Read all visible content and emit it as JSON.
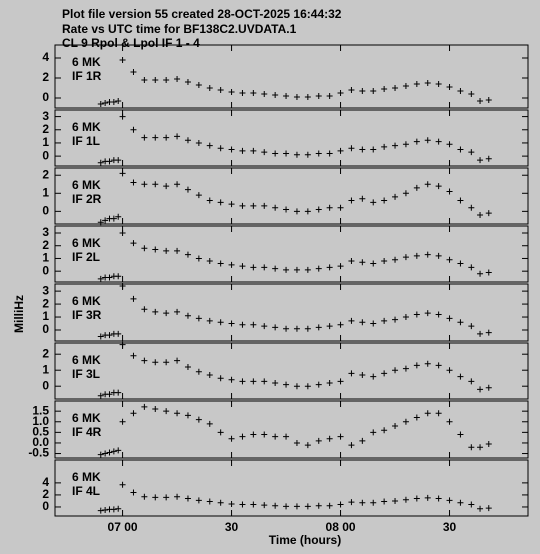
{
  "header": {
    "lines": [
      "Plot file version 55  created 28-OCT-2025 16:44:32",
      "Rate vs UTC time for BF138C2.UVDATA.1",
      "CL 9  Rpol & Lpol  IF 1 - 4"
    ]
  },
  "ylabel": "MilliHz",
  "xlabel": "Time (hours)",
  "chart_data": [
    {
      "type": "scatter",
      "annotations": [
        "6 MK",
        "IF 1R"
      ],
      "xlim": [
        6.69,
        8.86
      ],
      "ylim": [
        -1,
        5.3
      ],
      "yticks": [
        0,
        2,
        4
      ],
      "xticks": [
        {
          "value": 7,
          "label": "07 00"
        },
        {
          "value": 7.5,
          "label": "30"
        },
        {
          "value": 8,
          "label": "08 00"
        },
        {
          "value": 8.5,
          "label": "30"
        }
      ],
      "x": [
        6.9,
        6.92,
        6.94,
        6.96,
        6.98,
        7,
        7.05,
        7.1,
        7.15,
        7.2,
        7.25,
        7.3,
        7.35,
        7.4,
        7.45,
        7.5,
        7.55,
        7.6,
        7.65,
        7.7,
        7.75,
        7.8,
        7.85,
        7.9,
        7.95,
        8,
        8.05,
        8.1,
        8.15,
        8.2,
        8.25,
        8.3,
        8.35,
        8.4,
        8.45,
        8.5,
        8.55,
        8.6,
        8.64,
        8.68
      ],
      "values": [
        -0.6,
        -0.5,
        -0.4,
        -0.4,
        -0.3,
        3.8,
        2.6,
        1.8,
        1.8,
        1.8,
        1.9,
        1.6,
        1.3,
        1.0,
        0.8,
        0.6,
        0.5,
        0.5,
        0.4,
        0.3,
        0.2,
        0.1,
        0.1,
        0.2,
        0.2,
        0.5,
        0.8,
        0.7,
        0.7,
        0.9,
        1.0,
        1.2,
        1.4,
        1.5,
        1.4,
        1.1,
        0.7,
        0.4,
        -0.3,
        -0.2
      ]
    },
    {
      "type": "scatter",
      "annotations": [
        "6 MK",
        "IF 1L"
      ],
      "xlim": [
        6.69,
        8.86
      ],
      "ylim": [
        -0.75,
        3.5
      ],
      "yticks": [
        0,
        1,
        2,
        3
      ],
      "xticks": [
        {
          "value": 7,
          "label": "07 00"
        },
        {
          "value": 7.5,
          "label": "30"
        },
        {
          "value": 8,
          "label": "08 00"
        },
        {
          "value": 8.5,
          "label": "30"
        }
      ],
      "x": [
        6.9,
        6.92,
        6.94,
        6.96,
        6.98,
        7,
        7.05,
        7.1,
        7.15,
        7.2,
        7.25,
        7.3,
        7.35,
        7.4,
        7.45,
        7.5,
        7.55,
        7.6,
        7.65,
        7.7,
        7.75,
        7.8,
        7.85,
        7.9,
        7.95,
        8,
        8.05,
        8.1,
        8.15,
        8.2,
        8.25,
        8.3,
        8.35,
        8.4,
        8.45,
        8.5,
        8.55,
        8.6,
        8.64,
        8.68
      ],
      "values": [
        -0.5,
        -0.4,
        -0.4,
        -0.3,
        -0.3,
        3.0,
        2.0,
        1.4,
        1.4,
        1.4,
        1.5,
        1.2,
        1.0,
        0.8,
        0.6,
        0.5,
        0.4,
        0.4,
        0.3,
        0.2,
        0.2,
        0.1,
        0.1,
        0.2,
        0.2,
        0.4,
        0.6,
        0.5,
        0.5,
        0.7,
        0.8,
        0.9,
        1.1,
        1.2,
        1.1,
        0.9,
        0.5,
        0.3,
        -0.3,
        -0.2
      ]
    },
    {
      "type": "scatter",
      "annotations": [
        "6 MK",
        "IF 2R"
      ],
      "xlim": [
        6.69,
        8.86
      ],
      "ylim": [
        -0.7,
        2.4
      ],
      "yticks": [
        0,
        1,
        2
      ],
      "xticks": [
        {
          "value": 7,
          "label": "07 00"
        },
        {
          "value": 7.5,
          "label": "30"
        },
        {
          "value": 8,
          "label": "08 00"
        },
        {
          "value": 8.5,
          "label": "30"
        }
      ],
      "x": [
        6.9,
        6.92,
        6.94,
        6.96,
        6.98,
        7,
        7.05,
        7.1,
        7.15,
        7.2,
        7.25,
        7.3,
        7.35,
        7.4,
        7.45,
        7.5,
        7.55,
        7.6,
        7.65,
        7.7,
        7.75,
        7.8,
        7.85,
        7.9,
        7.95,
        8,
        8.05,
        8.1,
        8.15,
        8.2,
        8.25,
        8.3,
        8.35,
        8.4,
        8.45,
        8.5,
        8.55,
        8.6,
        8.64,
        8.68
      ],
      "values": [
        -0.6,
        -0.5,
        -0.4,
        -0.4,
        -0.3,
        2.1,
        1.6,
        1.5,
        1.5,
        1.4,
        1.5,
        1.2,
        0.9,
        0.6,
        0.5,
        0.4,
        0.3,
        0.3,
        0.3,
        0.2,
        0.1,
        0.0,
        0.0,
        0.1,
        0.2,
        0.2,
        0.6,
        0.7,
        0.5,
        0.6,
        0.8,
        1.0,
        1.3,
        1.5,
        1.4,
        1.1,
        0.6,
        0.2,
        -0.2,
        -0.1
      ]
    },
    {
      "type": "scatter",
      "annotations": [
        "6 MK",
        "IF 2L"
      ],
      "xlim": [
        6.69,
        8.86
      ],
      "ylim": [
        -0.85,
        3.55
      ],
      "yticks": [
        0,
        1,
        2,
        3
      ],
      "xticks": [
        {
          "value": 7,
          "label": "07 00"
        },
        {
          "value": 7.5,
          "label": "30"
        },
        {
          "value": 8,
          "label": "08 00"
        },
        {
          "value": 8.5,
          "label": "30"
        }
      ],
      "x": [
        6.9,
        6.92,
        6.94,
        6.96,
        6.98,
        7,
        7.05,
        7.1,
        7.15,
        7.2,
        7.25,
        7.3,
        7.35,
        7.4,
        7.45,
        7.5,
        7.55,
        7.6,
        7.65,
        7.7,
        7.75,
        7.8,
        7.85,
        7.9,
        7.95,
        8,
        8.05,
        8.1,
        8.15,
        8.2,
        8.25,
        8.3,
        8.35,
        8.4,
        8.45,
        8.5,
        8.55,
        8.6,
        8.64,
        8.68
      ],
      "values": [
        -0.6,
        -0.5,
        -0.5,
        -0.4,
        -0.4,
        3.0,
        2.2,
        1.8,
        1.7,
        1.6,
        1.6,
        1.3,
        1.0,
        0.8,
        0.6,
        0.5,
        0.4,
        0.3,
        0.3,
        0.2,
        0.1,
        0.1,
        0.1,
        0.2,
        0.3,
        0.4,
        0.8,
        0.7,
        0.6,
        0.8,
        0.9,
        1.1,
        1.2,
        1.3,
        1.2,
        0.9,
        0.6,
        0.3,
        -0.2,
        -0.1
      ]
    },
    {
      "type": "scatter",
      "annotations": [
        "6 MK",
        "IF 3R"
      ],
      "xlim": [
        6.69,
        8.86
      ],
      "ylim": [
        -0.85,
        3.55
      ],
      "yticks": [
        0,
        1,
        2,
        3
      ],
      "xticks": [
        {
          "value": 7,
          "label": "07 00"
        },
        {
          "value": 7.5,
          "label": "30"
        },
        {
          "value": 8,
          "label": "08 00"
        },
        {
          "value": 8.5,
          "label": "30"
        }
      ],
      "x": [
        6.9,
        6.92,
        6.94,
        6.96,
        6.98,
        7,
        7.05,
        7.1,
        7.15,
        7.2,
        7.25,
        7.3,
        7.35,
        7.4,
        7.45,
        7.5,
        7.55,
        7.6,
        7.65,
        7.7,
        7.75,
        7.8,
        7.85,
        7.9,
        7.95,
        8,
        8.05,
        8.1,
        8.15,
        8.2,
        8.25,
        8.3,
        8.35,
        8.4,
        8.45,
        8.5,
        8.55,
        8.6,
        8.64,
        8.68
      ],
      "values": [
        -0.5,
        -0.4,
        -0.4,
        -0.3,
        -0.3,
        3.4,
        2.4,
        1.6,
        1.4,
        1.3,
        1.4,
        1.1,
        0.9,
        0.7,
        0.6,
        0.5,
        0.4,
        0.4,
        0.3,
        0.2,
        0.1,
        0.1,
        0.1,
        0.2,
        0.3,
        0.4,
        0.7,
        0.6,
        0.5,
        0.7,
        0.8,
        1.0,
        1.2,
        1.3,
        1.2,
        0.9,
        0.6,
        0.3,
        -0.3,
        -0.2
      ]
    },
    {
      "type": "scatter",
      "annotations": [
        "6 MK",
        "IF 3L"
      ],
      "xlim": [
        6.69,
        8.86
      ],
      "ylim": [
        -0.8,
        2.7
      ],
      "yticks": [
        0,
        1,
        2
      ],
      "xticks": [
        {
          "value": 7,
          "label": "07 00"
        },
        {
          "value": 7.5,
          "label": "30"
        },
        {
          "value": 8,
          "label": "08 00"
        },
        {
          "value": 8.5,
          "label": "30"
        }
      ],
      "x": [
        6.9,
        6.92,
        6.94,
        6.96,
        6.98,
        7,
        7.05,
        7.1,
        7.15,
        7.2,
        7.25,
        7.3,
        7.35,
        7.4,
        7.45,
        7.5,
        7.55,
        7.6,
        7.65,
        7.7,
        7.75,
        7.8,
        7.85,
        7.9,
        7.95,
        8,
        8.05,
        8.1,
        8.15,
        8.2,
        8.25,
        8.3,
        8.35,
        8.4,
        8.45,
        8.5,
        8.55,
        8.6,
        8.64,
        8.68
      ],
      "values": [
        -0.6,
        -0.5,
        -0.5,
        -0.4,
        -0.4,
        2.6,
        1.9,
        1.6,
        1.5,
        1.5,
        1.6,
        1.2,
        0.9,
        0.7,
        0.5,
        0.4,
        0.3,
        0.3,
        0.3,
        0.2,
        0.1,
        0.0,
        0.0,
        0.1,
        0.2,
        0.3,
        0.8,
        0.7,
        0.6,
        0.8,
        1.0,
        1.1,
        1.3,
        1.4,
        1.3,
        1.0,
        0.6,
        0.3,
        -0.2,
        -0.1
      ]
    },
    {
      "type": "scatter",
      "annotations": [
        "6 MK",
        "IF 4R"
      ],
      "xlim": [
        6.69,
        8.86
      ],
      "ylim": [
        -0.71,
        1.98
      ],
      "yticks": [
        -0.5,
        {
          "value": 0,
          "label": "0.0"
        },
        0.5,
        {
          "value": 1,
          "label": "1.0"
        },
        1.5
      ],
      "xticks": [
        {
          "value": 7,
          "label": "07 00"
        },
        {
          "value": 7.5,
          "label": "30"
        },
        {
          "value": 8,
          "label": "08 00"
        },
        {
          "value": 8.5,
          "label": "30"
        }
      ],
      "x": [
        6.9,
        6.92,
        6.94,
        6.96,
        6.98,
        7,
        7.05,
        7.1,
        7.15,
        7.2,
        7.25,
        7.3,
        7.35,
        7.4,
        7.45,
        7.5,
        7.55,
        7.6,
        7.65,
        7.7,
        7.75,
        7.8,
        7.85,
        7.9,
        7.95,
        8,
        8.05,
        8.1,
        8.15,
        8.2,
        8.25,
        8.3,
        8.35,
        8.4,
        8.45,
        8.5,
        8.55,
        8.6,
        8.64,
        8.68
      ],
      "values": [
        -0.55,
        -0.5,
        -0.45,
        -0.4,
        -0.35,
        1.0,
        1.4,
        1.7,
        1.6,
        1.5,
        1.4,
        1.3,
        1.1,
        0.9,
        0.5,
        0.2,
        0.3,
        0.4,
        0.4,
        0.3,
        0.3,
        0.0,
        -0.1,
        0.1,
        0.2,
        0.3,
        -0.1,
        0.1,
        0.5,
        0.6,
        0.8,
        1.0,
        1.2,
        1.4,
        1.4,
        1.0,
        0.4,
        -0.2,
        -0.2,
        -0.05
      ]
    },
    {
      "type": "scatter",
      "annotations": [
        "6 MK",
        "IF 4L"
      ],
      "xlim": [
        6.69,
        8.86
      ],
      "ylim": [
        -1.5,
        7.8
      ],
      "yticks": [
        0,
        2,
        4
      ],
      "xticks": [
        {
          "value": 7,
          "label": "07 00"
        },
        {
          "value": 7.5,
          "label": "30"
        },
        {
          "value": 8,
          "label": "08 00"
        },
        {
          "value": 8.5,
          "label": "30"
        }
      ],
      "x": [
        6.9,
        6.92,
        6.94,
        6.96,
        6.98,
        7,
        7.05,
        7.1,
        7.15,
        7.2,
        7.25,
        7.3,
        7.35,
        7.4,
        7.45,
        7.5,
        7.55,
        7.6,
        7.65,
        7.7,
        7.75,
        7.8,
        7.85,
        7.9,
        7.95,
        8,
        8.05,
        8.1,
        8.15,
        8.2,
        8.25,
        8.3,
        8.35,
        8.4,
        8.45,
        8.5,
        8.55,
        8.6,
        8.64,
        8.68
      ],
      "values": [
        -0.6,
        -0.5,
        -0.4,
        -0.4,
        -0.3,
        3.7,
        2.4,
        1.7,
        1.6,
        1.6,
        1.7,
        1.4,
        1.1,
        0.9,
        0.7,
        0.5,
        0.4,
        0.4,
        0.3,
        0.2,
        0.1,
        0.1,
        0.1,
        0.2,
        0.2,
        0.4,
        0.8,
        0.7,
        0.7,
        0.9,
        1.0,
        1.2,
        1.4,
        1.5,
        1.4,
        1.1,
        0.7,
        0.4,
        -0.3,
        -0.2
      ]
    }
  ]
}
